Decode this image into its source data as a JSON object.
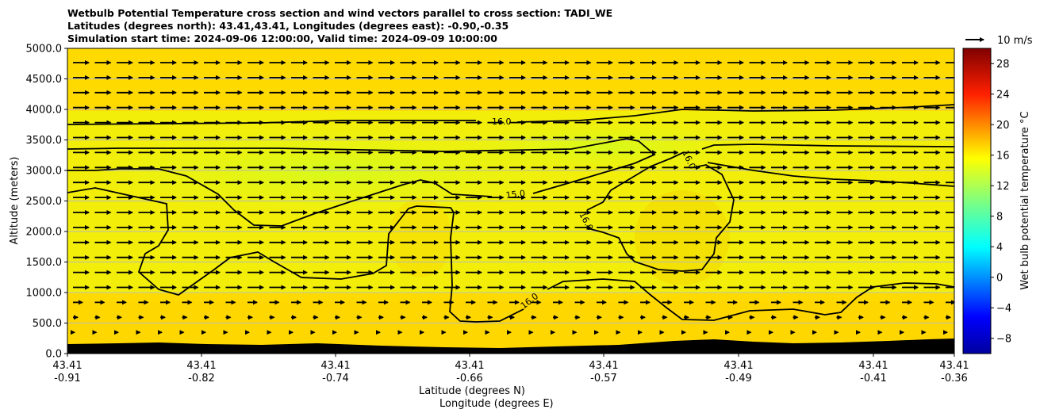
{
  "title_lines": [
    "Wetbulb Potential Temperature cross section and wind vectors parallel to cross section: TADI_WE",
    "Latitudes (degrees north): 43.41,43.41, Longitudes (degrees east): -0.90,-0.35",
    "Simulation start time: 2024-09-06 12:00:00, Valid time: 2024-09-09 10:00:00"
  ],
  "wind_key_label": "10 m/s",
  "colorbar_label": "Wet bulb potential temperature °C",
  "colorbar_ticks": [
    "28",
    "24",
    "20",
    "16",
    "12",
    "8",
    "4",
    "0",
    "−4",
    "−8"
  ],
  "colorbar_range": [
    -10,
    30
  ],
  "chart_data": {
    "type": "heatmap",
    "ylabel": "Altitude (meters)",
    "xlabel_line1": "Latitude (degrees N)",
    "xlabel_line2": "Longitude (degrees E)",
    "ylim": [
      0,
      5000
    ],
    "y_ticks": [
      "5000.0",
      "4500.0",
      "4000.0",
      "3500.0",
      "3000.0",
      "2500.0",
      "2000.0",
      "1500.0",
      "1000.0",
      "500.0",
      "0.0"
    ],
    "x_tick_lat": [
      "43.41",
      "43.41",
      "43.41",
      "43.41",
      "43.41",
      "43.41",
      "43.41",
      "43.41"
    ],
    "x_tick_lon": [
      "-0.91",
      "-0.82",
      "-0.74",
      "-0.66",
      "-0.57",
      "-0.49",
      "-0.41",
      "-0.36"
    ],
    "contour_labels": [
      "16.0",
      "15.0",
      "16.0",
      "16.0",
      "16.0"
    ],
    "colors": {
      "fill_warm": "#ffd800",
      "fill_mid": "#eef20c",
      "fill_cool": "#d7fa1e",
      "terrain": "#000000"
    }
  }
}
